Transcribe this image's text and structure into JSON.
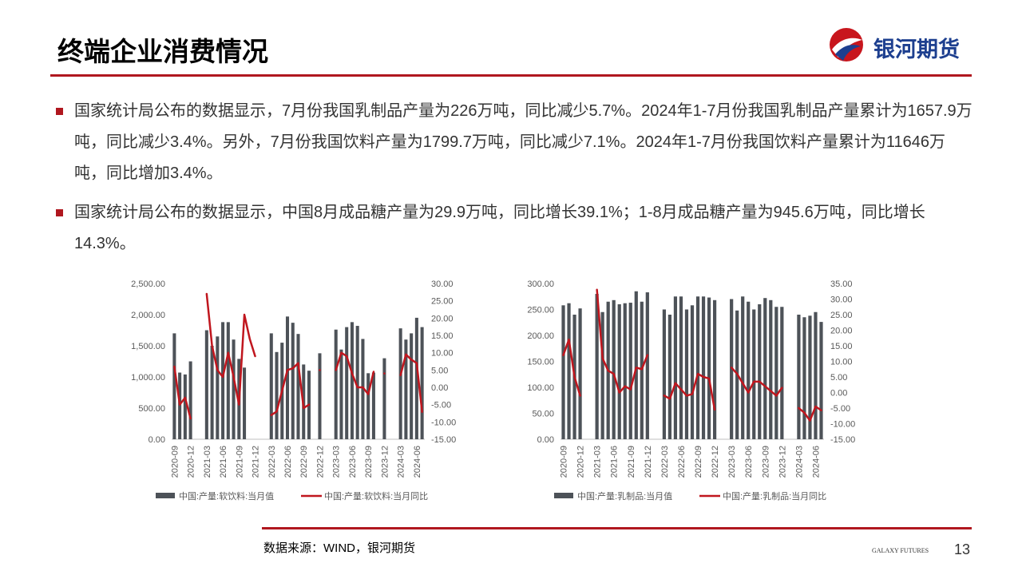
{
  "header": {
    "title": "终端企业消费情况",
    "logo": "银河期货"
  },
  "bullets": [
    "国家统计局公布的数据显示，7月份我国乳制品产量为226万吨，同比减少5.7%。2024年1-7月份我国乳制品产量累计为1657.9万吨，同比减少3.4%。另外，7月份我国饮料产量为1799.7万吨，同比减少7.1%。2024年1-7月份我国饮料产量累计为11646万吨，同比增加3.4%。",
    "国家统计局公布的数据显示，中国8月成品糖产量为29.9万吨，同比增长39.1%；1-8月成品糖产量为945.6万吨，同比增长14.3%。"
  ],
  "footer": {
    "source": "数据来源：WIND，银河期货",
    "brand": "GALAXY FUTURES",
    "page": "13"
  },
  "chart_data": [
    {
      "type": "combo",
      "categories": [
        "2020-09",
        null,
        null,
        "2020-12",
        null,
        null,
        "2021-03",
        null,
        null,
        "2021-06",
        null,
        null,
        "2021-09",
        null,
        null,
        "2021-12",
        null,
        null,
        "2022-03",
        null,
        null,
        "2022-06",
        null,
        null,
        "2022-09",
        null,
        null,
        "2022-12",
        null,
        null,
        "2023-03",
        null,
        null,
        "2023-06",
        null,
        null,
        "2023-09",
        null,
        null,
        "2023-12",
        null,
        null,
        "2024-03",
        null,
        null,
        "2024-06",
        null
      ],
      "series": [
        {
          "name": "中国:产量:软饮料:当月值",
          "type": "bar",
          "color": "#4d5258",
          "values": [
            1700,
            1070,
            1040,
            1250,
            null,
            null,
            1750,
            1500,
            1650,
            1880,
            1880,
            1600,
            1290,
            1150,
            null,
            null,
            null,
            null,
            1700,
            1400,
            1550,
            1970,
            1870,
            1690,
            1200,
            1100,
            null,
            1380,
            null,
            null,
            1760,
            1440,
            1800,
            1880,
            1820,
            1610,
            1060,
            1070,
            null,
            1300,
            null,
            null,
            1780,
            1600,
            1700,
            1950,
            1800
          ]
        },
        {
          "name": "中国:产量:软饮料:当月同比",
          "type": "line",
          "axis": "y2",
          "color": "#c0161e",
          "values": [
            6,
            -5,
            -3,
            -9,
            null,
            null,
            27,
            12,
            5,
            3,
            10,
            3,
            -5,
            21,
            14,
            9,
            null,
            null,
            -8,
            -7,
            -1,
            5,
            5.5,
            7,
            -6,
            -5,
            null,
            5,
            null,
            null,
            5,
            10,
            9,
            4,
            0,
            0,
            -2,
            4.5,
            null,
            4,
            null,
            null,
            3.5,
            9.5,
            8,
            7,
            -7.1
          ]
        }
      ],
      "ylim": [
        0,
        2500
      ],
      "yticks": [
        {
          "value": 0,
          "label": "0.00"
        },
        {
          "value": 500,
          "label": "500.00"
        },
        {
          "value": 1000,
          "label": "1,000.00"
        },
        {
          "value": 1500,
          "label": "1,500.00"
        },
        {
          "value": 2000,
          "label": "2,000.00"
        },
        {
          "value": 2500,
          "label": "2,500.00"
        }
      ],
      "y2lim": [
        -15,
        30
      ],
      "y2ticks": [
        {
          "value": -15,
          "label": "-15.00"
        },
        {
          "value": -10,
          "label": "-10.00"
        },
        {
          "value": -5,
          "label": "-5.00"
        },
        {
          "value": 0,
          "label": "0.00"
        },
        {
          "value": 5,
          "label": "5.00"
        },
        {
          "value": 10,
          "label": "10.00"
        },
        {
          "value": 15,
          "label": "15.00"
        },
        {
          "value": 20,
          "label": "20.00"
        },
        {
          "value": 25,
          "label": "25.00"
        },
        {
          "value": 30,
          "label": "30.00"
        }
      ]
    },
    {
      "type": "combo",
      "categories": [
        "2020-09",
        null,
        null,
        "2020-12",
        null,
        null,
        "2021-03",
        null,
        null,
        "2021-06",
        null,
        null,
        "2021-09",
        null,
        null,
        "2021-12",
        null,
        null,
        "2022-03",
        null,
        null,
        "2022-06",
        null,
        null,
        "2022-09",
        null,
        null,
        "2022-12",
        null,
        null,
        "2023-03",
        null,
        null,
        "2023-06",
        null,
        null,
        "2023-09",
        null,
        null,
        "2023-12",
        null,
        null,
        "2024-03",
        null,
        null,
        "2024-06",
        null
      ],
      "series": [
        {
          "name": "中国:产量:乳制品:当月值",
          "type": "bar",
          "color": "#4d5258",
          "values": [
            258,
            262,
            240,
            252,
            null,
            null,
            280,
            245,
            265,
            268,
            260,
            262,
            263,
            285,
            265,
            283,
            null,
            null,
            250,
            240,
            275,
            275,
            250,
            258,
            275,
            275,
            273,
            268,
            null,
            null,
            270,
            248,
            275,
            265,
            250,
            260,
            272,
            268,
            255,
            255,
            null,
            null,
            240,
            235,
            238,
            245,
            226
          ]
        },
        {
          "name": "中国:产量:乳制品:当月同比",
          "type": "line",
          "axis": "y2",
          "color": "#c0161e",
          "values": [
            12,
            17,
            5,
            -1,
            null,
            null,
            33,
            11,
            7,
            6,
            0,
            2,
            1,
            8,
            7.5,
            12,
            null,
            null,
            -1,
            -2,
            3,
            1,
            -1,
            -0.5,
            6,
            5,
            4.5,
            -5.5,
            null,
            null,
            8,
            6,
            3,
            0,
            3.5,
            3.5,
            2,
            0.5,
            -1,
            1.5,
            null,
            null,
            -5,
            -6.5,
            -9,
            -4.5,
            -5.7
          ]
        }
      ],
      "ylim": [
        0,
        300
      ],
      "yticks": [
        {
          "value": 0,
          "label": "0.00"
        },
        {
          "value": 50,
          "label": "50.00"
        },
        {
          "value": 100,
          "label": "100.00"
        },
        {
          "value": 150,
          "label": "150.00"
        },
        {
          "value": 200,
          "label": "200.00"
        },
        {
          "value": 250,
          "label": "250.00"
        },
        {
          "value": 300,
          "label": "300.00"
        }
      ],
      "y2lim": [
        -15,
        35
      ],
      "y2ticks": [
        {
          "value": -15,
          "label": "-15.00"
        },
        {
          "value": -10,
          "label": "-10.00"
        },
        {
          "value": -5,
          "label": "-5.00"
        },
        {
          "value": 0,
          "label": "0.00"
        },
        {
          "value": 5,
          "label": "5.00"
        },
        {
          "value": 10,
          "label": "10.00"
        },
        {
          "value": 15,
          "label": "15.00"
        },
        {
          "value": 20,
          "label": "20.00"
        },
        {
          "value": 25,
          "label": "25.00"
        },
        {
          "value": 30,
          "label": "30.00"
        },
        {
          "value": 35,
          "label": "35.00"
        }
      ]
    }
  ]
}
